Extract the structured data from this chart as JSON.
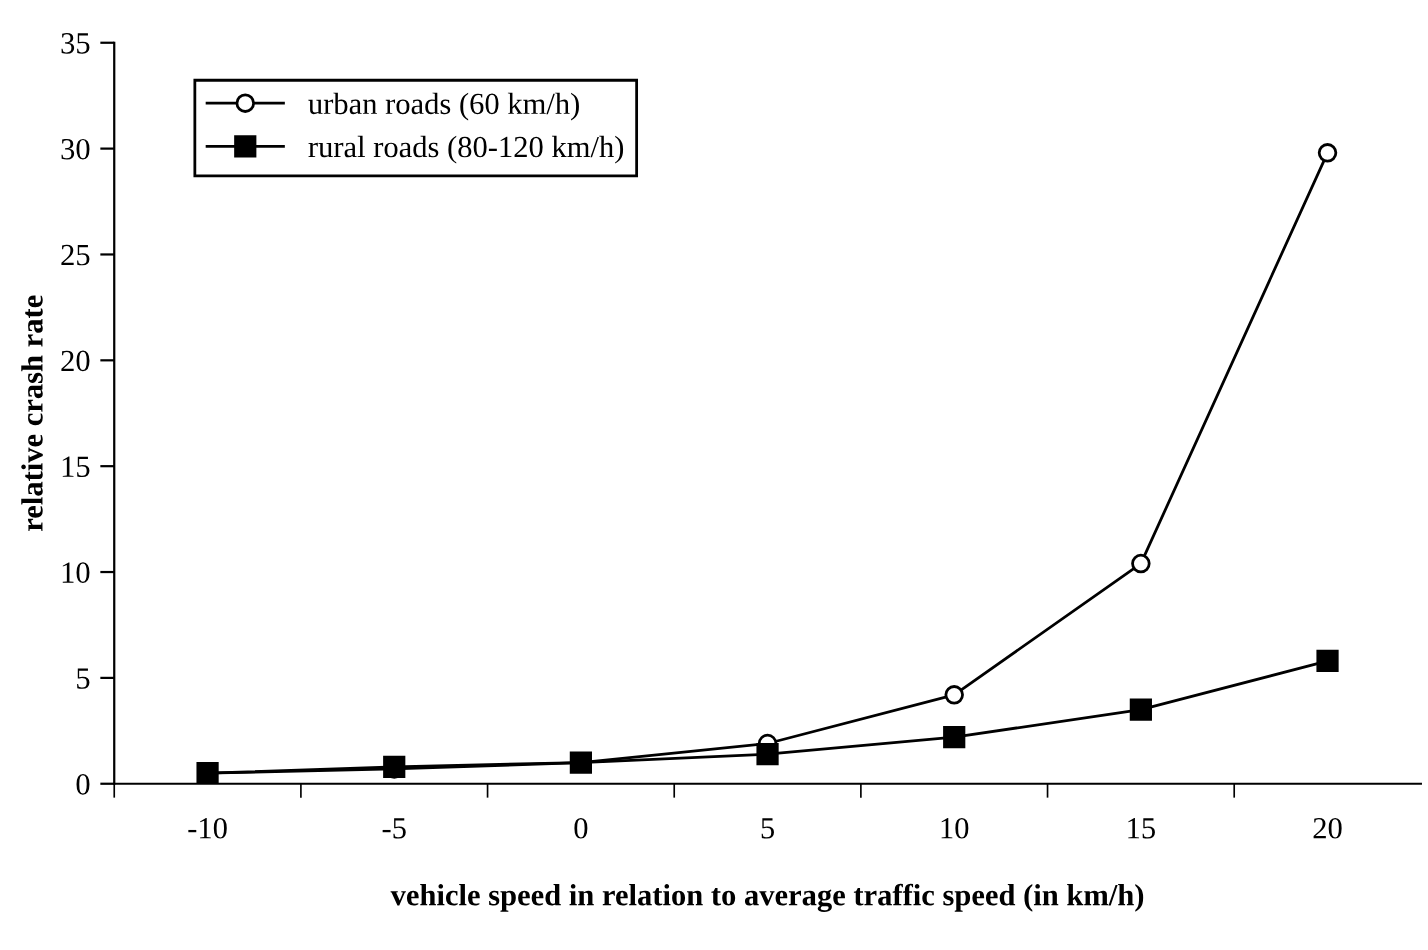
{
  "chart_data": {
    "type": "line",
    "xlabel": "vehicle speed in relation to average traffic speed (in km/h)",
    "ylabel": "relative crash rate",
    "categories": [
      "-10",
      "-5",
      "0",
      "5",
      "10",
      "15",
      "20"
    ],
    "series": [
      {
        "name": "urban roads (60 km/h)",
        "color": "#000000",
        "marker": "circle",
        "values": [
          0.5,
          0.7,
          1.0,
          1.9,
          4.2,
          10.4,
          29.8
        ]
      },
      {
        "name": "rural roads (80-120 km/h)",
        "color": "#000000",
        "marker": "square",
        "values": [
          0.5,
          0.8,
          1.0,
          1.4,
          2.2,
          3.5,
          5.8
        ]
      }
    ],
    "ylim": [
      0,
      35
    ],
    "yticks": [
      0,
      5,
      10,
      15,
      20,
      25,
      30,
      35
    ],
    "grid": false,
    "legend": "top left",
    "line_style": "solid"
  }
}
